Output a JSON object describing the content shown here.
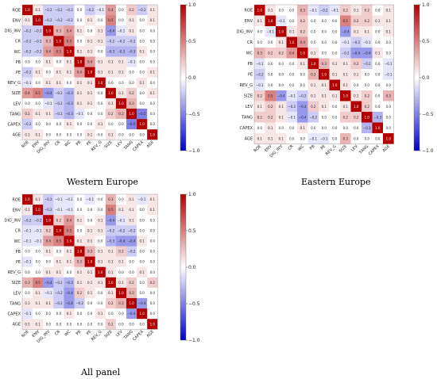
{
  "chart_data": [
    {
      "type": "heatmap",
      "caption": "Western Europe",
      "variables": [
        "ROE",
        "ENV",
        "DIG_INV",
        "CR",
        "WC",
        "PB",
        "PE",
        "REV_G",
        "SIZE",
        "LEV",
        "TANG",
        "CAPEX",
        "AGE"
      ],
      "colorbar": {
        "min": -1.0,
        "max": 1.0,
        "ticks": [
          1.0,
          0.5,
          0.0,
          -0.5,
          -1.0
        ],
        "tick_labels": [
          "1.0",
          "0.5",
          "0.0",
          "−0.5",
          "−1.0"
        ]
      },
      "colors": {
        "low": "#0000cc",
        "mid": "#ffffff",
        "high": "#b30000"
      },
      "values": [
        [
          1.0,
          0.1,
          -0.2,
          -0.2,
          -0.2,
          0.0,
          -0.2,
          -0.1,
          0.4,
          0.0,
          0.2,
          -0.2,
          0.1
        ],
        [
          0.1,
          1.0,
          -0.2,
          -0.2,
          -0.2,
          0.0,
          0.1,
          0.0,
          0.5,
          0.0,
          0.1,
          0.0,
          0.1
        ],
        [
          -0.2,
          -0.2,
          1.0,
          0.3,
          0.4,
          0.1,
          0.0,
          0.1,
          -0.4,
          -0.1,
          0.1,
          0.0,
          0.0
        ],
        [
          -0.2,
          -0.2,
          0.3,
          1.0,
          0.5,
          0.0,
          0.1,
          0.1,
          -0.2,
          -0.2,
          -0.2,
          0.0,
          0.0
        ],
        [
          -0.2,
          -0.2,
          0.4,
          0.5,
          1.0,
          0.1,
          0.1,
          0.0,
          -0.3,
          -0.3,
          -0.3,
          0.1,
          0.0
        ],
        [
          0.0,
          0.0,
          0.1,
          0.0,
          0.1,
          1.0,
          0.4,
          0.1,
          0.1,
          0.1,
          -0.1,
          0.0,
          0.0
        ],
        [
          -0.2,
          0.1,
          0.0,
          0.1,
          0.1,
          0.4,
          1.0,
          0.1,
          0.1,
          0.1,
          0.0,
          0.0,
          0.1
        ],
        [
          -0.1,
          0.0,
          0.1,
          0.1,
          0.0,
          0.1,
          0.1,
          1.0,
          0.0,
          0.0,
          0.0,
          0.1,
          0.0
        ],
        [
          0.4,
          0.5,
          -0.4,
          -0.2,
          -0.3,
          0.1,
          0.1,
          0.0,
          1.0,
          0.1,
          0.2,
          0.0,
          0.1
        ],
        [
          0.0,
          0.0,
          -0.1,
          -0.2,
          -0.3,
          0.1,
          0.1,
          0.0,
          0.1,
          1.0,
          0.3,
          0.0,
          0.0
        ],
        [
          0.2,
          0.1,
          0.1,
          -0.2,
          -0.3,
          -0.1,
          0.0,
          0.0,
          0.2,
          0.3,
          1.0,
          -0.5,
          0.0
        ],
        [
          -0.2,
          0.0,
          0.0,
          0.0,
          0.1,
          0.0,
          0.0,
          0.1,
          0.0,
          0.0,
          -0.5,
          1.0,
          0.0
        ],
        [
          0.1,
          0.1,
          0.0,
          0.0,
          0.0,
          0.0,
          0.1,
          0.0,
          0.1,
          0.0,
          0.0,
          0.0,
          1.0
        ]
      ]
    },
    {
      "type": "heatmap",
      "caption": "Eastern Europe",
      "variables": [
        "ROE",
        "ENV",
        "DIG_INV",
        "CR",
        "WC",
        "PB",
        "PE",
        "REV_G",
        "SIZE",
        "LEV",
        "TANG",
        "CAPEX",
        "AGE"
      ],
      "colorbar": {
        "min": -1.0,
        "max": 1.0,
        "ticks": [
          1.0,
          0.5,
          0.0,
          -0.5,
          -1.0
        ],
        "tick_labels": [
          "1.0",
          "0.5",
          "0.0",
          "−0.5",
          "−1.0"
        ]
      },
      "colors": {
        "low": "#0000cc",
        "mid": "#ffffff",
        "high": "#b30000"
      },
      "values": [
        [
          1.0,
          0.1,
          0.0,
          0.0,
          0.3,
          -0.1,
          -0.2,
          -0.1,
          0.2,
          0.1,
          0.2,
          0.0,
          0.1
        ],
        [
          0.1,
          1.0,
          -0.1,
          0.0,
          0.2,
          0.0,
          0.0,
          0.0,
          0.5,
          0.2,
          0.2,
          0.1,
          0.1
        ],
        [
          0.0,
          -0.1,
          1.0,
          0.1,
          0.2,
          0.0,
          0.0,
          0.0,
          -0.4,
          0.1,
          0.1,
          0.0,
          0.1
        ],
        [
          0.0,
          0.0,
          0.1,
          1.0,
          0.4,
          0.0,
          0.0,
          0.0,
          -0.1,
          -0.2,
          -0.1,
          0.0,
          0.0
        ],
        [
          0.3,
          0.2,
          0.2,
          0.4,
          1.0,
          0.1,
          0.0,
          0.0,
          -0.2,
          -0.4,
          -0.4,
          0.1,
          0.0
        ],
        [
          -0.1,
          0.0,
          0.0,
          0.0,
          0.1,
          1.0,
          0.3,
          0.1,
          0.1,
          0.2,
          -0.2,
          0.0,
          -0.1
        ],
        [
          -0.2,
          0.0,
          0.0,
          0.0,
          0.0,
          0.3,
          1.0,
          0.1,
          0.1,
          0.1,
          0.0,
          0.0,
          -0.1
        ],
        [
          -0.1,
          0.0,
          0.0,
          0.0,
          0.0,
          0.1,
          0.1,
          1.0,
          0.1,
          0.0,
          0.0,
          0.0,
          0.0
        ],
        [
          0.2,
          0.5,
          -0.4,
          -0.1,
          -0.2,
          0.1,
          0.1,
          0.1,
          1.0,
          0.1,
          0.2,
          0.0,
          0.3
        ],
        [
          0.1,
          0.2,
          0.1,
          -0.2,
          -0.4,
          0.2,
          0.1,
          0.0,
          0.1,
          1.0,
          0.2,
          0.0,
          0.0
        ],
        [
          0.2,
          0.2,
          0.1,
          -0.1,
          -0.4,
          -0.2,
          0.0,
          0.0,
          0.2,
          0.2,
          1.0,
          -0.3,
          0.0
        ],
        [
          0.0,
          0.1,
          0.0,
          0.0,
          0.1,
          0.0,
          0.0,
          0.0,
          0.0,
          0.0,
          -0.3,
          1.0,
          0.0
        ],
        [
          0.1,
          0.1,
          0.1,
          0.0,
          0.0,
          -0.1,
          -0.1,
          0.0,
          0.3,
          0.0,
          0.0,
          0.0,
          1.0
        ]
      ]
    },
    {
      "type": "heatmap",
      "caption": "All panel",
      "variables": [
        "ROE",
        "ENV",
        "DIG_INV",
        "CR",
        "WC",
        "PB",
        "PE",
        "REV_G",
        "SIZE",
        "LEV",
        "TANG",
        "CAPEX",
        "AGE"
      ],
      "colorbar": {
        "min": -1.0,
        "max": 1.0,
        "ticks": [
          1.0,
          0.5,
          0.0,
          -0.5,
          -1.0
        ],
        "tick_labels": [
          "1.0",
          "0.5",
          "0.0",
          "−0.5",
          "−1.0"
        ]
      },
      "colors": {
        "low": "#0000cc",
        "mid": "#ffffff",
        "high": "#b30000"
      },
      "values": [
        [
          1.0,
          0.1,
          -0.2,
          -0.1,
          -0.1,
          0.0,
          -0.1,
          0.0,
          0.3,
          0.0,
          0.1,
          -0.1,
          0.1
        ],
        [
          0.1,
          1.0,
          -0.2,
          -0.1,
          -0.1,
          0.0,
          0.0,
          0.0,
          0.5,
          0.1,
          0.1,
          0.0,
          0.1
        ],
        [
          -0.2,
          -0.2,
          1.0,
          0.2,
          0.4,
          0.1,
          0.0,
          0.1,
          -0.4,
          -0.1,
          0.1,
          0.0,
          0.0
        ],
        [
          -0.1,
          -0.1,
          0.2,
          1.0,
          0.5,
          0.0,
          0.1,
          0.1,
          -0.2,
          -0.2,
          -0.2,
          0.0,
          0.0
        ],
        [
          -0.1,
          -0.1,
          0.4,
          0.5,
          1.0,
          0.1,
          0.1,
          0.0,
          -0.3,
          -0.4,
          -0.4,
          0.1,
          0.0
        ],
        [
          0.0,
          0.0,
          0.1,
          0.0,
          0.1,
          1.0,
          0.3,
          0.1,
          0.1,
          0.2,
          -0.2,
          0.0,
          0.0
        ],
        [
          -0.1,
          0.0,
          0.0,
          0.1,
          0.1,
          0.3,
          1.0,
          0.1,
          0.1,
          0.1,
          0.0,
          0.0,
          0.0
        ],
        [
          0.0,
          0.0,
          0.1,
          0.1,
          0.0,
          0.1,
          0.1,
          1.0,
          0.1,
          0.0,
          0.0,
          0.1,
          0.0
        ],
        [
          0.3,
          0.5,
          -0.4,
          -0.2,
          -0.3,
          0.1,
          0.1,
          0.1,
          1.0,
          0.1,
          0.2,
          0.0,
          0.2
        ],
        [
          0.0,
          0.1,
          -0.1,
          -0.2,
          -0.4,
          0.2,
          0.1,
          0.0,
          0.1,
          1.0,
          0.3,
          0.0,
          0.0
        ],
        [
          0.1,
          0.1,
          0.1,
          -0.2,
          -0.4,
          -0.2,
          0.0,
          0.0,
          0.2,
          0.3,
          1.0,
          -0.4,
          0.0
        ],
        [
          -0.1,
          0.0,
          0.0,
          0.0,
          0.1,
          0.0,
          0.0,
          0.1,
          0.0,
          0.0,
          -0.4,
          1.0,
          0.0
        ],
        [
          0.1,
          0.1,
          0.0,
          0.0,
          0.0,
          0.0,
          0.0,
          0.0,
          0.2,
          0.0,
          0.0,
          0.0,
          1.0
        ]
      ]
    }
  ]
}
